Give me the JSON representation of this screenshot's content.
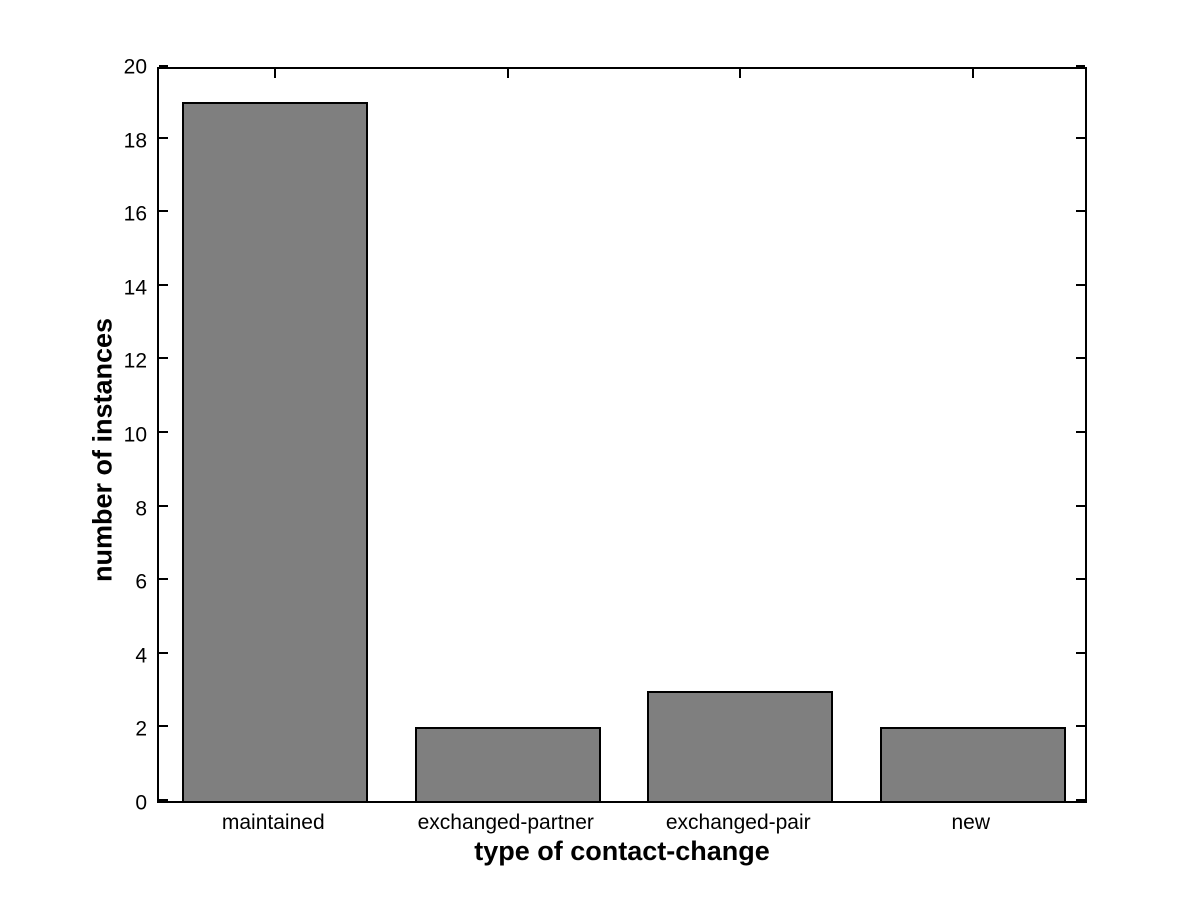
{
  "chart_data": {
    "type": "bar",
    "title": "",
    "xlabel": "type of contact-change",
    "ylabel": "number of instances",
    "categories": [
      "maintained",
      "exchanged-partner",
      "exchanged-pair",
      "new"
    ],
    "values": [
      19,
      2,
      3,
      2
    ],
    "ylim": [
      0,
      20
    ],
    "yticks": [
      0,
      2,
      4,
      6,
      8,
      10,
      12,
      14,
      16,
      18,
      20
    ],
    "grid": "off",
    "legend": "none",
    "bar_color": "#7F7F7F",
    "bar_edge_color": "#000000",
    "axis_color": "#000000",
    "background_color": "#FFFFFF",
    "tick_style": "inward, mirrored on top and right edges"
  }
}
